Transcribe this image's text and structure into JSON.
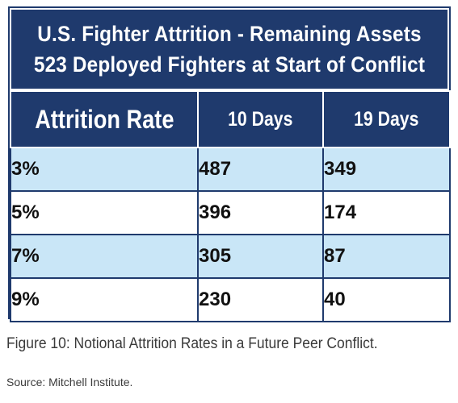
{
  "title": {
    "line1": "U.S. Fighter Attrition - Remaining Assets",
    "line2": "523 Deployed Fighters at Start of Conflict"
  },
  "table": {
    "headers": [
      "Attrition Rate",
      "10 Days",
      "19 Days"
    ],
    "rows": [
      {
        "rate": "3%",
        "d10": "487",
        "d19": "349"
      },
      {
        "rate": "5%",
        "d10": "396",
        "d19": "174"
      },
      {
        "rate": "7%",
        "d10": "305",
        "d19": "87"
      },
      {
        "rate": "9%",
        "d10": "230",
        "d19": "40"
      }
    ]
  },
  "caption": "Figure 10: Notional Attrition Rates in a Future Peer Conflict.",
  "source": "Source: Mitchell Institute.",
  "colors": {
    "header_bg": "#1f3a6d",
    "row_alt": "#c9e6f7",
    "text_light": "#ffffff"
  }
}
